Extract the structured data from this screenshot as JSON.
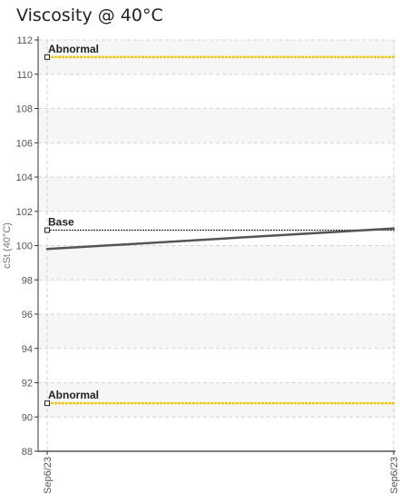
{
  "chart_data": {
    "type": "line",
    "title": "Viscosity @ 40°C",
    "ylabel": "cSt (40°C)",
    "ylim": [
      88,
      112
    ],
    "yticks": [
      88,
      90,
      92,
      94,
      96,
      98,
      100,
      102,
      104,
      106,
      108,
      110,
      112
    ],
    "xticks": [
      "Sep6/23",
      "Sep6/23"
    ],
    "grid": true,
    "series": [
      {
        "values": [
          99.8,
          101.0
        ],
        "color": "#555555"
      }
    ],
    "reference_lines": [
      {
        "label": "Abnormal",
        "value": 111,
        "color": "#f2c80f",
        "style": "dotted"
      },
      {
        "label": "Base",
        "value": 100.9,
        "color": "#333333",
        "style": "dotted"
      },
      {
        "label": "Abnormal",
        "value": 90.8,
        "color": "#f2c80f",
        "style": "dotted"
      }
    ]
  }
}
